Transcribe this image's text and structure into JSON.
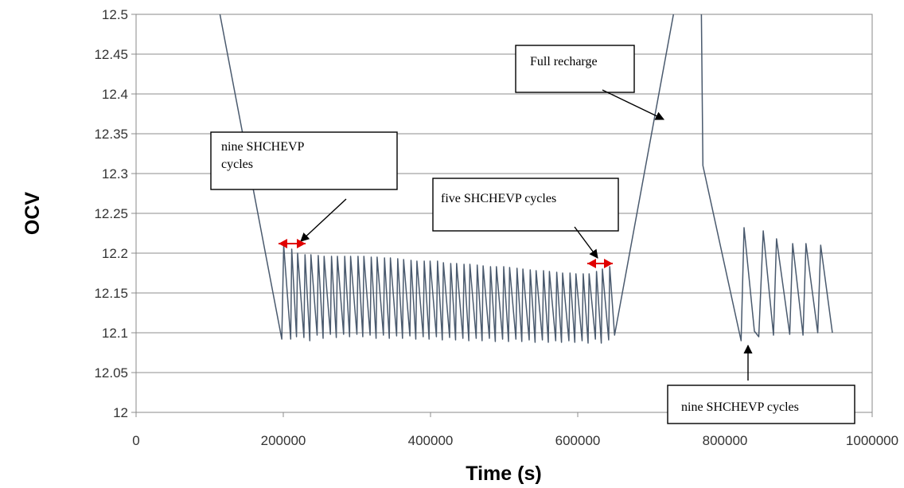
{
  "chart_data": {
    "type": "line",
    "title": "",
    "xlabel": "Time (s)",
    "ylabel": "OCV",
    "xlim": [
      0,
      1000000
    ],
    "ylim": [
      12,
      12.5
    ],
    "x_ticks": [
      0,
      200000,
      400000,
      600000,
      800000,
      1000000
    ],
    "x_tick_labels": [
      "0",
      "200000",
      "400000",
      "600000",
      "800000",
      "1000000"
    ],
    "y_ticks": [
      12,
      12.05,
      12.1,
      12.15,
      12.2,
      12.25,
      12.3,
      12.35,
      12.4,
      12.45,
      12.5
    ],
    "y_tick_labels": [
      "12",
      "12.05",
      "12.1",
      "12.15",
      "12.2",
      "12.25",
      "12.3",
      "12.35",
      "12.4",
      "12.45",
      "12.5"
    ],
    "grid": "horizontal",
    "line_color": "#4a5a6e",
    "series": [
      {
        "x": [
          114000,
          198000,
          200500,
          210000,
          211500,
          218000,
          219500,
          228000,
          229500,
          236000,
          237500,
          246000,
          247500,
          254000,
          255500,
          264000,
          265500,
          272000,
          273500,
          282000,
          283500,
          290000,
          291500,
          300000,
          301500,
          308000,
          309500,
          318000,
          319500,
          326000,
          327500,
          336000,
          337500,
          344000,
          345500,
          354000,
          355500,
          362000,
          363500,
          372000,
          373500,
          380000,
          381500,
          390000,
          391500,
          398000,
          399500,
          408000,
          409500,
          416000,
          417500,
          426000,
          427500,
          434000,
          435500,
          444000,
          445500,
          452000,
          453500,
          462000,
          463500,
          470000,
          471500,
          480000,
          481500,
          488000,
          489500,
          498000,
          499500,
          506000,
          507500,
          516000,
          517500,
          524000,
          525500,
          534000,
          535500,
          542000,
          543500,
          552000,
          553500,
          560000,
          561500,
          570000,
          571500,
          578000,
          579500,
          588000,
          589500,
          596000,
          597500,
          606000,
          607500,
          614000,
          615500,
          624000,
          625500,
          632000,
          633500,
          642000,
          643500,
          650000,
          730000
        ],
        "y": [
          12.5,
          12.092,
          12.21,
          12.092,
          12.205,
          12.095,
          12.2,
          12.094,
          12.198,
          12.09,
          12.198,
          12.097,
          12.197,
          12.093,
          12.196,
          12.098,
          12.196,
          12.094,
          12.196,
          12.098,
          12.196,
          12.095,
          12.196,
          12.098,
          12.196,
          12.095,
          12.196,
          12.097,
          12.195,
          12.093,
          12.195,
          12.097,
          12.194,
          12.093,
          12.194,
          12.096,
          12.193,
          12.093,
          12.192,
          12.096,
          12.191,
          12.092,
          12.19,
          12.095,
          12.19,
          12.092,
          12.19,
          12.095,
          12.19,
          12.091,
          12.188,
          12.094,
          12.187,
          12.091,
          12.187,
          12.093,
          12.186,
          12.09,
          12.186,
          12.093,
          12.185,
          12.09,
          12.184,
          12.093,
          12.183,
          12.089,
          12.183,
          12.092,
          12.183,
          12.089,
          12.182,
          12.092,
          12.181,
          12.089,
          12.18,
          12.091,
          12.179,
          12.088,
          12.178,
          12.091,
          12.178,
          12.088,
          12.177,
          12.09,
          12.176,
          12.088,
          12.175,
          12.09,
          12.175,
          12.088,
          12.174,
          12.09,
          12.174,
          12.087,
          12.174,
          12.092,
          12.177,
          12.087,
          12.18,
          12.091,
          12.183,
          12.097,
          12.5
        ]
      },
      {
        "x": [
          768000,
          770000,
          822000,
          826000,
          840000,
          846000,
          852000,
          866000,
          870000,
          888000,
          892000,
          906000,
          910000,
          926000,
          930000,
          946000
        ],
        "y": [
          12.5,
          12.31,
          12.09,
          12.232,
          12.102,
          12.095,
          12.228,
          12.097,
          12.218,
          12.098,
          12.212,
          12.097,
          12.212,
          12.1,
          12.21,
          12.1
        ]
      }
    ],
    "annotations": [
      {
        "lines": [
          "Full recharge"
        ]
      },
      {
        "lines": [
          "nine SHCHEVP",
          "cycles"
        ]
      },
      {
        "lines": [
          "five SHCHEVP cycles"
        ]
      },
      {
        "lines": [
          "nine SHCHEVP cycles"
        ]
      }
    ]
  }
}
